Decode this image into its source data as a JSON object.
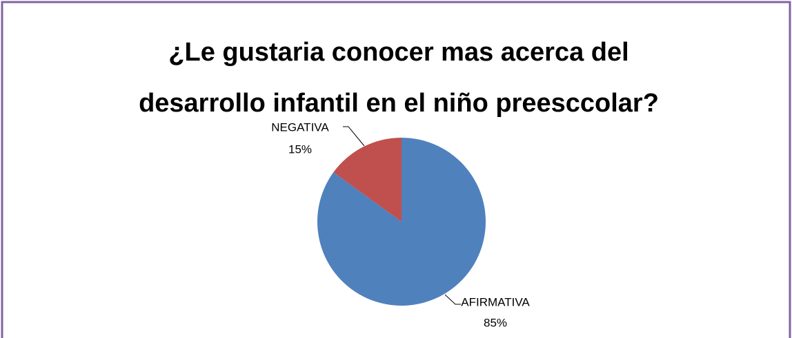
{
  "chart_data": {
    "type": "pie",
    "title": [
      "¿Le gustaria conocer mas acerca del",
      "desarrollo infantil en el niño preesccolar?"
    ],
    "categories": [
      "AFIRMATIVA",
      "NEGATIVA"
    ],
    "values": [
      85,
      15
    ],
    "value_labels": [
      "85%",
      "15%"
    ],
    "colors": [
      "#4f81bd",
      "#c0504d"
    ]
  }
}
